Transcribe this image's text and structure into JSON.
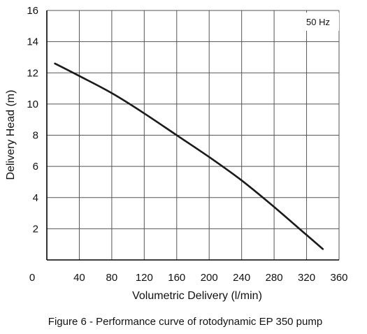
{
  "chart_data": {
    "type": "line",
    "title": "",
    "xlabel": "Volumetric Delivery (l/min)",
    "ylabel": "Delivery Head (m)",
    "xlim": [
      0,
      360
    ],
    "ylim": [
      0,
      16
    ],
    "x_ticks": [
      0,
      40,
      80,
      120,
      160,
      200,
      240,
      280,
      320,
      360
    ],
    "y_ticks": [
      2,
      4,
      6,
      8,
      10,
      12,
      14,
      16
    ],
    "grid": true,
    "legend": {
      "text": "50 Hz",
      "placement": "top-right"
    },
    "series": [
      {
        "x": [
          10,
          40,
          80,
          120,
          160,
          200,
          240,
          280,
          320,
          340
        ],
        "y": [
          12.6,
          11.8,
          10.7,
          9.4,
          8.0,
          6.6,
          5.1,
          3.4,
          1.6,
          0.7
        ]
      }
    ],
    "colors": {
      "line": "#1a1a1a",
      "grid": "#555555",
      "axis": "#000000"
    }
  },
  "caption": "Figure 6 - Performance curve of rotodynamic EP 350 pump"
}
